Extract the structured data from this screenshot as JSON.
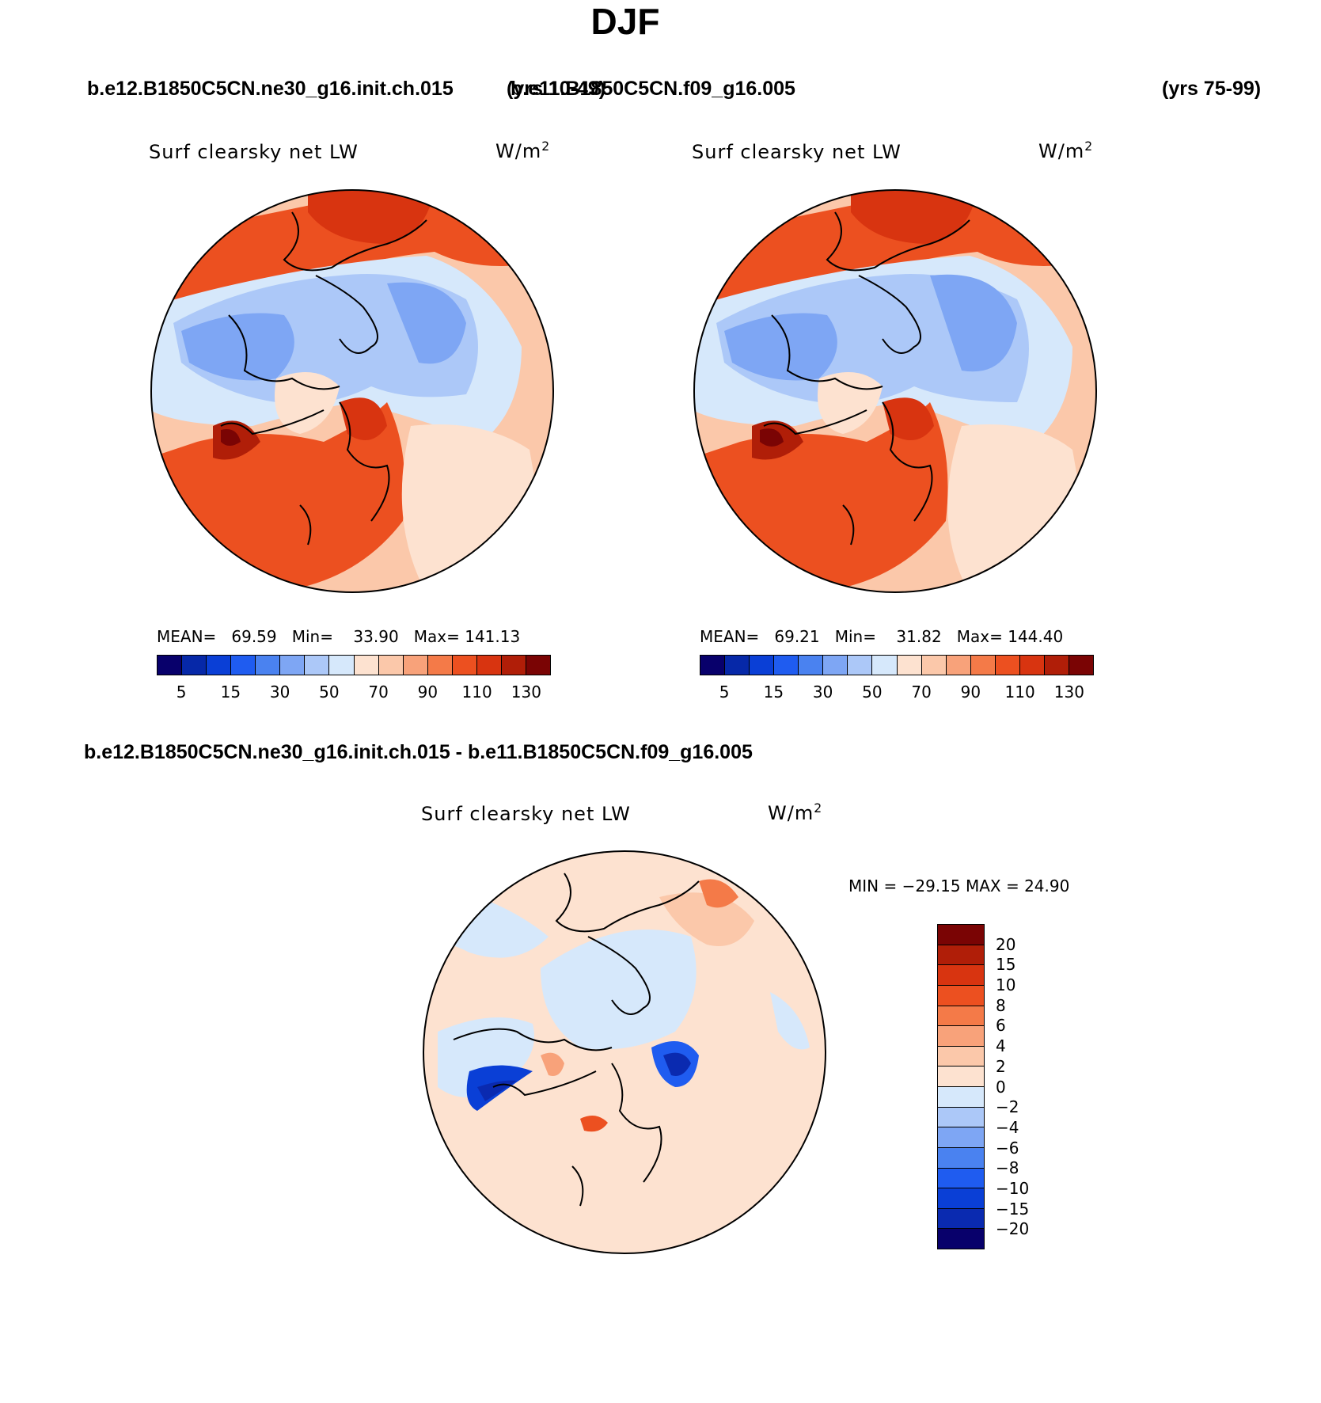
{
  "title": "DJF",
  "header": {
    "case1": "b.e12.B1850C5CN.ne30_g16.init.ch.015",
    "case1_years": "(yrs 10-49)",
    "case2": "b.e11.B1850C5CN.f09_g16.005",
    "case2_years": "(yrs 75-99)",
    "diff_title": "b.e12.B1850C5CN.ne30_g16.init.ch.015 - b.e11.B1850C5CN.f09_g16.005"
  },
  "colors": {
    "abs_levels": [
      "#08006b",
      "#0628a8",
      "#0a3fd6",
      "#1f5cf0",
      "#4a82f0",
      "#7ea6f4",
      "#acc8f8",
      "#d6e8fb",
      "#fde2d0",
      "#fbc8aa",
      "#f8a27a",
      "#f47a48",
      "#ec5020",
      "#d83410",
      "#b01e08",
      "#7a0404"
    ],
    "diff_levels": [
      "#08006b",
      "#0a2ab0",
      "#0a3fd6",
      "#1f5cf0",
      "#4a82f0",
      "#7ea6f4",
      "#acc8f8",
      "#d6e8fb",
      "#fde2d0",
      "#fbc8aa",
      "#f8a27a",
      "#f47a48",
      "#ec5020",
      "#d83410",
      "#b01e08",
      "#7a0404"
    ]
  },
  "chart_data": [
    {
      "type": "polar contour map",
      "name": "case1",
      "variable": "Surf clearsky net LW",
      "units_base": "W/m",
      "units_exp": "2",
      "stats": {
        "mean_label": "MEAN=",
        "mean": "69.59",
        "min_label": "Min=",
        "min": "33.90",
        "max_label": "Max=",
        "max": "141.13"
      },
      "colorbar_ticks": [
        "5",
        "15",
        "30",
        "50",
        "70",
        "90",
        "110",
        "130"
      ]
    },
    {
      "type": "polar contour map",
      "name": "case2",
      "variable": "Surf clearsky net LW",
      "units_base": "W/m",
      "units_exp": "2",
      "stats": {
        "mean_label": "MEAN=",
        "mean": "69.21",
        "min_label": "Min=",
        "min": "31.82",
        "max_label": "Max=",
        "max": "144.40"
      },
      "colorbar_ticks": [
        "5",
        "15",
        "30",
        "50",
        "70",
        "90",
        "110",
        "130"
      ]
    },
    {
      "type": "polar contour map",
      "name": "difference",
      "variable": "Surf clearsky net LW",
      "units_base": "W/m",
      "units_exp": "2",
      "minmax_text": "MIN = −29.15 MAX =   24.90",
      "colorbar_ticks": [
        "20",
        "15",
        "10",
        "8",
        "6",
        "4",
        "2",
        "0",
        "−2",
        "−4",
        "−6",
        "−8",
        "−10",
        "−15",
        "−20"
      ]
    }
  ]
}
